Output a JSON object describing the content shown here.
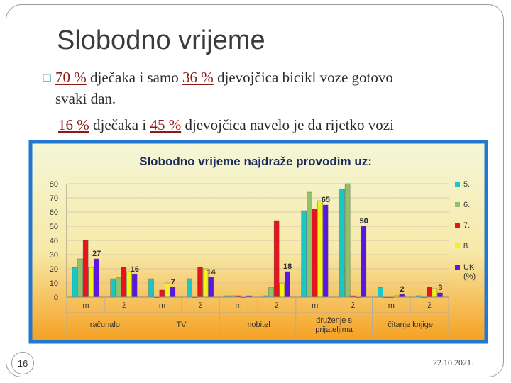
{
  "slide": {
    "title": "Slobodno vrijeme",
    "line1": {
      "pct1": "70 %",
      "t1": " dječaka i samo ",
      "pct2": "36 %",
      "t2": " djevojčica bicikl voze gotovo"
    },
    "line2": "svaki dan.",
    "line3": {
      "pct1": "16 %",
      "t1": " dječaka i ",
      "pct2": "45 %",
      "t2": " djevojčica navelo je da rijetko vozi"
    },
    "page_number": "16",
    "date": "22.10.2021."
  },
  "chart_data": {
    "type": "bar",
    "title": "Slobodno vrijeme najdraže provodim uz:",
    "ylim": [
      0,
      80
    ],
    "yticks": [
      0,
      10,
      20,
      30,
      40,
      50,
      60,
      70,
      80
    ],
    "groups": [
      "računalo",
      "TV",
      "mobitel",
      "druženje s prijateljima",
      "čitanje knjige"
    ],
    "categories": [
      "m",
      "ž",
      "m",
      "ž",
      "m",
      "ž",
      "m",
      "ž",
      "m",
      "ž"
    ],
    "series": [
      {
        "name": "5.",
        "color": "#19c7c7",
        "values": [
          21,
          13,
          13,
          13,
          1,
          1,
          61,
          76,
          7,
          1
        ]
      },
      {
        "name": "6.",
        "color": "#8fc36a",
        "values": [
          27,
          14,
          0,
          0,
          1,
          7,
          74,
          80,
          0,
          0
        ]
      },
      {
        "name": "7.",
        "color": "#e8141b",
        "values": [
          40,
          21,
          5,
          21,
          1,
          54,
          62,
          1,
          0,
          7
        ]
      },
      {
        "name": "8.",
        "color": "#f3f21b",
        "values": [
          21,
          18,
          10,
          20,
          0,
          10,
          68,
          0,
          1,
          6
        ]
      },
      {
        "name": "UK (%)",
        "color": "#5a17e0",
        "values": [
          27,
          16,
          7,
          14,
          1,
          18,
          65,
          50,
          2,
          3
        ]
      }
    ],
    "data_labels": [
      {
        "category_index": 0,
        "series": "UK (%)",
        "text": "27"
      },
      {
        "category_index": 1,
        "series": "UK (%)",
        "text": "16"
      },
      {
        "category_index": 2,
        "series": "UK (%)",
        "text": "7"
      },
      {
        "category_index": 3,
        "series": "UK (%)",
        "text": "14"
      },
      {
        "category_index": 5,
        "series": "UK (%)",
        "text": "18"
      },
      {
        "category_index": 6,
        "series": "UK (%)",
        "text": "65"
      },
      {
        "category_index": 7,
        "series": "UK (%)",
        "text": "50"
      },
      {
        "category_index": 8,
        "series": "UK (%)",
        "text": "2"
      },
      {
        "category_index": 9,
        "series": "UK (%)",
        "text": "3"
      }
    ],
    "legend_position": "right",
    "background_colors": {
      "top": "#f4f7d8",
      "bottom": "#f5a020",
      "frame": "#2277d0"
    }
  }
}
